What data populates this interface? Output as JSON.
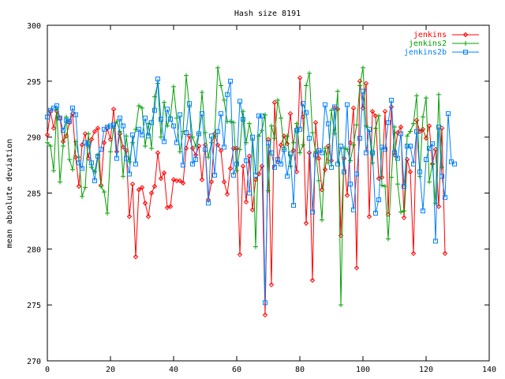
{
  "chart_data": {
    "type": "line",
    "title": "Hash size 8191",
    "xlabel": "",
    "ylabel": "mean absolute deviation",
    "xlim": [
      0,
      140
    ],
    "ylim": [
      270,
      300
    ],
    "xticks": [
      0,
      20,
      40,
      60,
      80,
      100,
      120,
      140
    ],
    "yticks": [
      270,
      275,
      280,
      285,
      290,
      295,
      300
    ],
    "grid": false,
    "legend_position": "top-right",
    "series": [
      {
        "name": "jenkins",
        "color": "#ff0000",
        "marker": "diamond",
        "y": [
          290.2,
          292.3,
          290.8,
          292.3,
          291.7,
          289.6,
          290.1,
          291.3,
          292.1,
          288.2,
          285.6,
          289.3,
          290.3,
          288.1,
          289.8,
          290.5,
          290.8,
          285.7,
          289.5,
          290.8,
          289.8,
          292.5,
          288.7,
          290.3,
          289.1,
          288.8,
          282.9,
          285.8,
          279.3,
          285.3,
          285.5,
          284.1,
          282.9,
          285.0,
          285.6,
          288.6,
          286.3,
          286.8,
          283.7,
          283.8,
          286.2,
          286.1,
          286.1,
          285.9,
          289.0,
          290.1,
          289.0,
          288.4,
          289.2,
          286.2,
          289.3,
          284.4,
          286.0,
          290.3,
          289.3,
          288.8,
          286.0,
          284.9,
          287.2,
          289.0,
          289.0,
          279.5,
          287.4,
          284.2,
          288.3,
          283.5,
          286.2,
          286.7,
          287.4,
          274.1,
          289.8,
          276.8,
          293.1,
          287.8,
          289.3,
          290.1,
          289.4,
          292.1,
          288.8,
          286.9,
          295.3,
          291.8,
          282.3,
          288.6,
          277.2,
          291.3,
          288.1,
          285.3,
          287.1,
          289.2,
          287.9,
          292.6,
          292.5,
          281.2,
          288.1,
          284.8,
          289.5,
          292.6,
          278.3,
          295.0,
          292.6,
          294.8,
          282.9,
          292.3,
          291.9,
          286.3,
          286.4,
          292.3,
          283.1,
          292.7,
          288.4,
          290.4,
          290.9,
          282.8,
          288.0,
          286.9,
          279.6,
          291.5,
          290.5,
          290.7,
          289.9,
          291.0,
          287.6,
          288.9,
          283.8,
          290.8,
          279.6
        ]
      },
      {
        "name": "jenkins2",
        "color": "#00a000",
        "marker": "plus",
        "y": [
          289.5,
          289.2,
          287.0,
          292.5,
          286.0,
          289.2,
          291.8,
          288.0,
          287.1,
          289.6,
          288.2,
          284.7,
          285.5,
          290.3,
          287.3,
          286.9,
          288.4,
          285.6,
          285.1,
          283.2,
          288.7,
          290.8,
          291.4,
          290.5,
          286.5,
          290.1,
          287.8,
          289.5,
          290.7,
          292.8,
          292.6,
          289.2,
          291.2,
          289.0,
          293.6,
          294.8,
          290.0,
          293.1,
          291.0,
          291.8,
          294.5,
          291.7,
          288.7,
          290.5,
          295.5,
          292.7,
          290.0,
          289.2,
          290.3,
          294.0,
          290.4,
          288.2,
          289.5,
          290.1,
          296.2,
          294.6,
          293.3,
          291.4,
          291.4,
          291.3,
          287.0,
          288.9,
          292.3,
          289.5,
          291.2,
          289.7,
          280.2,
          290.1,
          290.6,
          292.0,
          285.2,
          291.0,
          289.9,
          293.3,
          291.7,
          288.9,
          290.1,
          287.4,
          289.5,
          291.2,
          288.6,
          289.3,
          294.6,
          295.7,
          290.4,
          288.7,
          286.1,
          282.6,
          289.0,
          287.7,
          292.4,
          290.3,
          294.1,
          275.0,
          289.0,
          288.9,
          287.9,
          289.3,
          291.1,
          294.6,
          296.2,
          291.0,
          290.5,
          287.7,
          290.8,
          291.9,
          285.7,
          285.6,
          280.9,
          286.4,
          290.9,
          285.8,
          283.3,
          283.4,
          290.1,
          290.5,
          291.2,
          293.7,
          286.5,
          291.8,
          293.5,
          286.0,
          287.6,
          284.1,
          293.8,
          287.3
        ]
      },
      {
        "name": "jenkins2b",
        "color": "#0080ff",
        "marker": "square",
        "y": [
          291.8,
          292.4,
          292.6,
          292.8,
          291.7,
          290.6,
          291.5,
          291.4,
          292.6,
          292.0,
          287.7,
          287.2,
          289.5,
          289.4,
          287.7,
          286.1,
          288.3,
          288.9,
          290.7,
          290.9,
          291.0,
          291.1,
          288.1,
          291.7,
          291.0,
          288.1,
          286.7,
          290.2,
          287.6,
          290.7,
          290.2,
          291.7,
          290.1,
          291.3,
          292.4,
          295.2,
          291.6,
          289.6,
          292.5,
          291.6,
          291.0,
          289.5,
          292.0,
          287.5,
          290.4,
          293.0,
          287.6,
          288.0,
          290.3,
          292.1,
          288.9,
          284.1,
          290.1,
          286.6,
          290.5,
          292.1,
          289.1,
          293.8,
          295.0,
          286.6,
          287.6,
          293.2,
          291.6,
          287.9,
          285.0,
          290.0,
          286.6,
          291.9,
          291.9,
          275.2,
          289.5,
          288.6,
          287.3,
          288.0,
          287.6,
          288.9,
          286.5,
          288.5,
          283.9,
          290.6,
          290.7,
          293.0,
          292.2,
          289.9,
          283.3,
          288.4,
          288.8,
          288.6,
          292.9,
          291.2,
          287.3,
          292.7,
          287.6,
          289.2,
          286.9,
          292.9,
          285.8,
          283.5,
          286.7,
          289.9,
          294.1,
          288.6,
          290.7,
          288.6,
          283.2,
          284.4,
          289.1,
          288.9,
          291.3,
          293.3,
          288.6,
          288.1,
          290.3,
          285.6,
          289.2,
          289.2,
          287.6,
          290.5,
          286.9,
          283.4,
          288.0,
          289.0,
          289.4,
          280.7,
          290.9,
          286.5,
          284.6,
          292.1,
          287.8,
          287.6
        ]
      }
    ]
  }
}
